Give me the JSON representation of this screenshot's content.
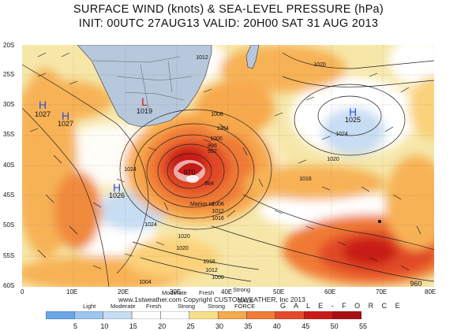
{
  "title_line1": "SURFACE WIND (knots) & SEA-LEVEL PRESSURE (hPa)",
  "title_line2": "INIT: 00UTC 27AUG13   VALID: 20H00 SAT 31 AUG 2013",
  "lat_labels": [
    "20S",
    "25S",
    "30S",
    "35S",
    "40S",
    "45S",
    "50S",
    "55S",
    "60S"
  ],
  "lon_labels": [
    "0",
    "10E",
    "20E",
    "30E",
    "40E",
    "50E",
    "60E",
    "70E",
    "80E"
  ],
  "pressure_centers": [
    {
      "type": "H",
      "value": "1027",
      "color": "#2b4fd8"
    },
    {
      "type": "H",
      "value": "1027",
      "color": "#2b4fd8"
    },
    {
      "type": "L",
      "value": "1019",
      "color": "#d01818"
    },
    {
      "type": "H",
      "value": "1025",
      "color": "#2b4fd8"
    },
    {
      "type": "H",
      "value": "1026",
      "color": "#2b4fd8"
    },
    {
      "type": "L",
      "value": "970",
      "color": "#d01818"
    },
    {
      "type": "L",
      "value": "960",
      "color": "#d01818"
    }
  ],
  "isobar_labels": [
    "1012",
    "1020",
    "1008",
    "1004",
    "1000",
    "996",
    "992",
    "970",
    "984",
    "1008",
    "1012",
    "1016",
    "1016",
    "1020",
    "1024",
    "1024",
    "1020",
    "1024",
    "1020",
    "1016",
    "1012",
    "1008",
    "1004"
  ],
  "marion_label": "Marion Isl",
  "credit": "www.1stweather.com Copyright CUSTOMWEATHER, Inc 2013",
  "categories": [
    {
      "label": "Light",
      "sub": ""
    },
    {
      "label": "Moderate",
      "sub": ""
    },
    {
      "label": "Fresh",
      "sub": ""
    },
    {
      "label": "Strong",
      "sub": ""
    },
    {
      "label": "Strong",
      "sub": ""
    },
    {
      "label": "GALE",
      "sub": "FORCE"
    }
  ],
  "category_line_top": [
    "Moderate",
    "Fresh"
  ],
  "category_line_top2": [
    "Strong"
  ],
  "gale_force_text": "G A L E - F O R C E",
  "colorbar_ticks": [
    "5",
    "10",
    "15",
    "20",
    "25",
    "30",
    "35",
    "40",
    "45",
    "50",
    "55"
  ],
  "colorbar_colors": [
    "#6aa6e8",
    "#9cc6ef",
    "#c7ddf3",
    "#ffffff",
    "#ffffff",
    "#f8e08a",
    "#f7a94d",
    "#f07a36",
    "#e64a2a",
    "#c81b17",
    "#a80f12"
  ],
  "land_color": "#b7c8dc",
  "low_color": "#d01818",
  "high_color": "#2b4fd8"
}
